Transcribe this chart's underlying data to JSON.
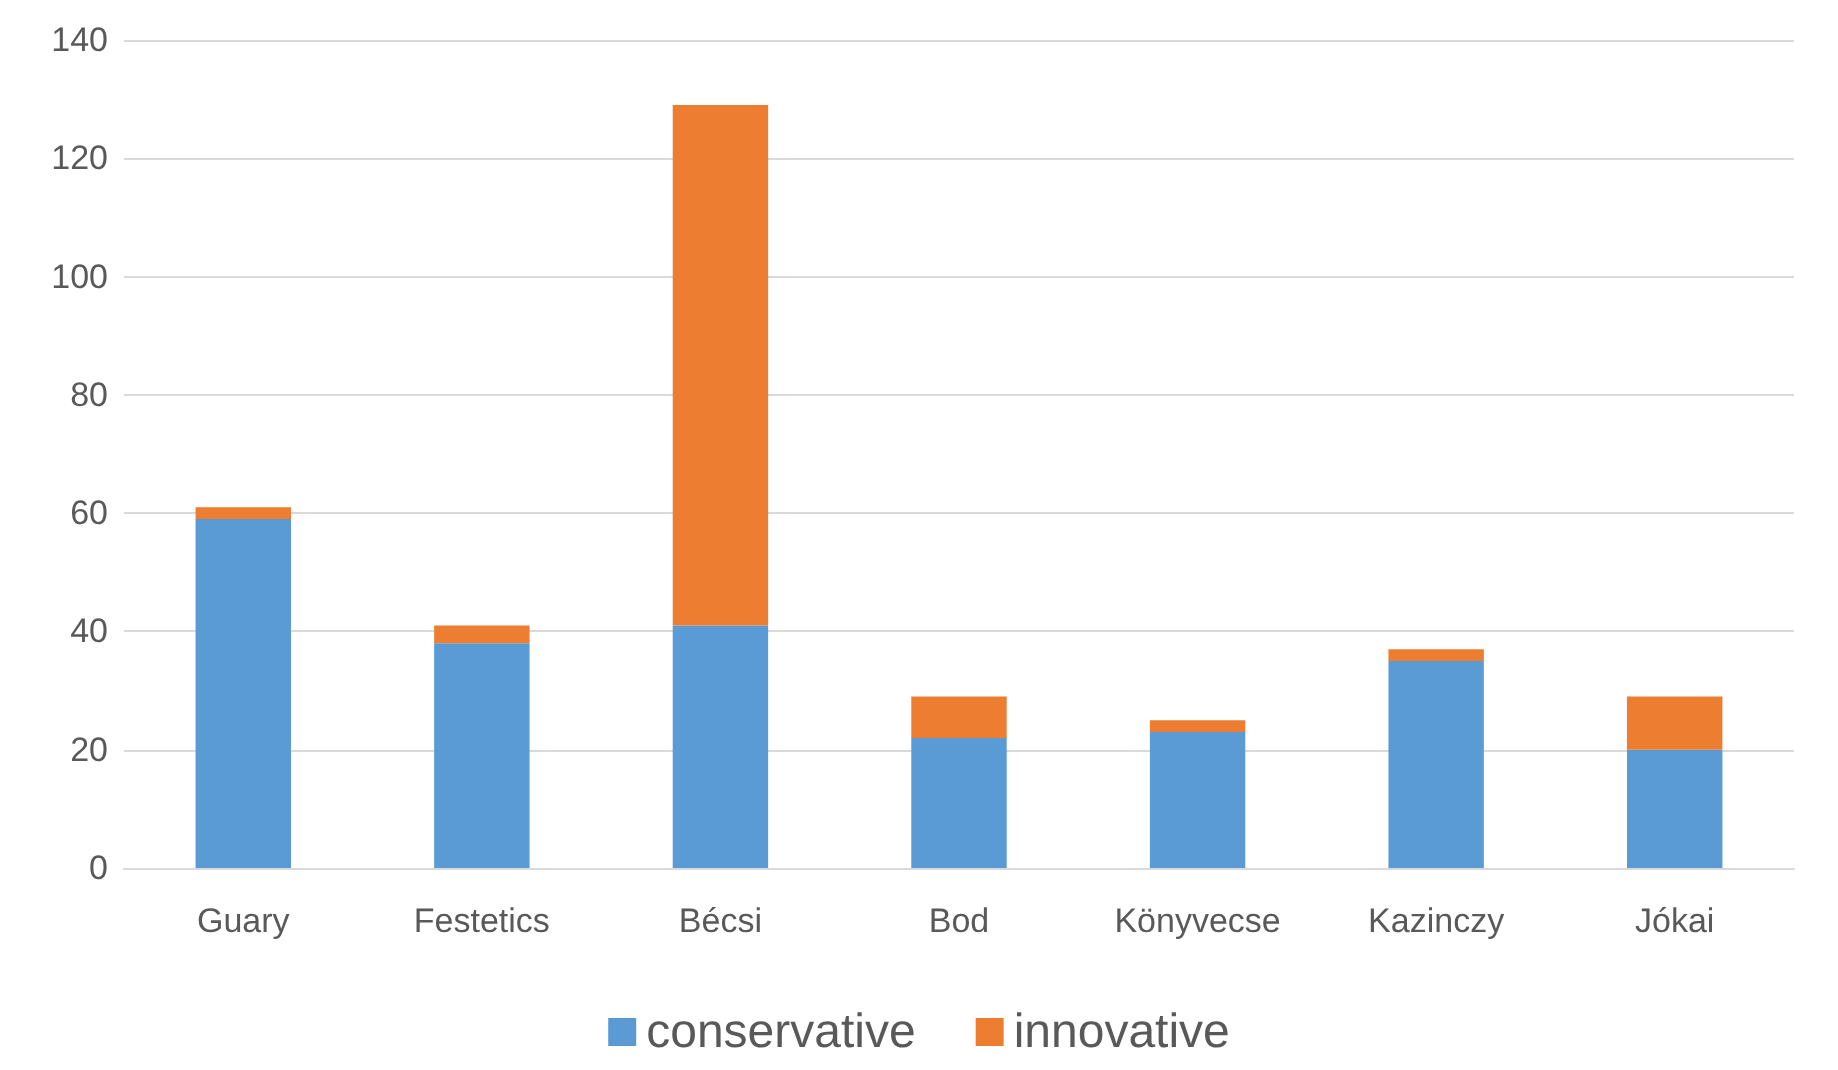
{
  "chart_data": {
    "type": "bar",
    "stacked": true,
    "categories": [
      "Guary",
      "Festetics",
      "Bécsi",
      "Bod",
      "Könyvecse",
      "Kazinczy",
      "Jókai"
    ],
    "series": [
      {
        "name": "conservative",
        "color": "#5b9bd5",
        "values": [
          59,
          38,
          41,
          22,
          23,
          35,
          20
        ]
      },
      {
        "name": "innovative",
        "color": "#ed7d31",
        "values": [
          2,
          3,
          88,
          7,
          2,
          2,
          9
        ]
      }
    ],
    "ylim": [
      0,
      140
    ],
    "yticks": [
      0,
      20,
      40,
      60,
      80,
      100,
      120,
      140
    ],
    "grid": "y",
    "legend": "bottom"
  }
}
